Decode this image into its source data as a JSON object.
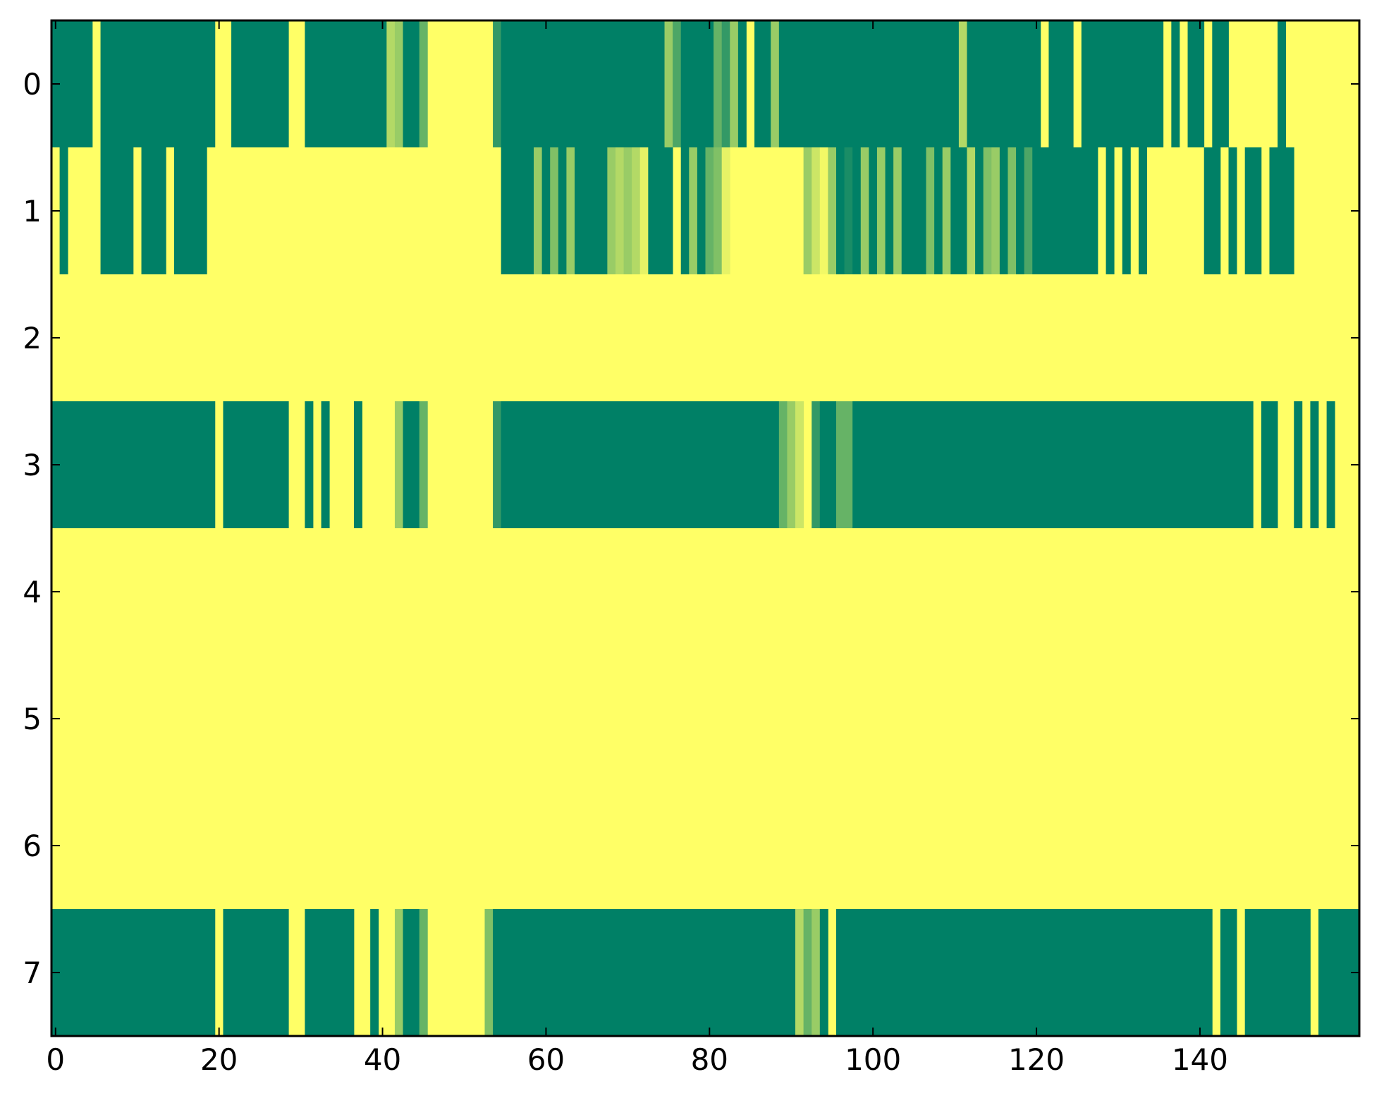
{
  "chart_data": {
    "type": "heatmap",
    "title": "",
    "xlabel": "",
    "ylabel": "",
    "x_range": [
      -0.5,
      159.5
    ],
    "rows": [
      0,
      1,
      2,
      3,
      4,
      5,
      6,
      7
    ],
    "xticks": [
      0,
      20,
      40,
      60,
      80,
      100,
      120,
      140
    ],
    "yticks": [
      0,
      1,
      2,
      3,
      4,
      5,
      6,
      7
    ],
    "colormap": "summer",
    "colormap_low": "#008066",
    "colormap_high": "#ffff66",
    "value_range": [
      0,
      1
    ],
    "cell_default": 1,
    "segments": [
      [
        [
          0,
          4,
          0
        ],
        [
          6,
          19,
          0
        ],
        [
          22,
          28,
          0
        ],
        [
          31,
          40,
          0
        ],
        [
          41,
          41,
          0.7
        ],
        [
          42,
          42,
          0.6
        ],
        [
          43,
          44,
          0
        ],
        [
          45,
          45,
          0.4
        ],
        [
          54,
          54,
          0.2
        ],
        [
          55,
          74,
          0
        ],
        [
          75,
          75,
          0.6
        ],
        [
          76,
          76,
          0.3
        ],
        [
          77,
          80,
          0
        ],
        [
          81,
          81,
          0.4
        ],
        [
          82,
          82,
          0.2
        ],
        [
          83,
          83,
          0.6
        ],
        [
          84,
          84,
          0
        ],
        [
          86,
          87,
          0
        ],
        [
          88,
          88,
          0.6
        ],
        [
          89,
          110,
          0
        ],
        [
          111,
          111,
          0.7
        ],
        [
          112,
          120,
          0
        ],
        [
          122,
          124,
          0
        ],
        [
          126,
          135,
          0
        ],
        [
          137,
          137,
          0
        ],
        [
          139,
          140,
          0
        ],
        [
          142,
          143,
          0
        ],
        [
          150,
          150,
          0
        ]
      ],
      [
        [
          1,
          1,
          0
        ],
        [
          6,
          9,
          0
        ],
        [
          11,
          13,
          0
        ],
        [
          15,
          18,
          0
        ],
        [
          55,
          58,
          0
        ],
        [
          59,
          59,
          0.6
        ],
        [
          60,
          60,
          0
        ],
        [
          61,
          61,
          0.5
        ],
        [
          62,
          62,
          0
        ],
        [
          63,
          63,
          0.6
        ],
        [
          64,
          67,
          0
        ],
        [
          68,
          68,
          0.6
        ],
        [
          69,
          69,
          0.7
        ],
        [
          70,
          70,
          0.6
        ],
        [
          71,
          71,
          0.7
        ],
        [
          72,
          72,
          0.9
        ],
        [
          73,
          75,
          0
        ],
        [
          77,
          77,
          0
        ],
        [
          78,
          78,
          0.6
        ],
        [
          79,
          79,
          0
        ],
        [
          80,
          80,
          0.4
        ],
        [
          81,
          81,
          0.5
        ],
        [
          82,
          82,
          0.9
        ],
        [
          92,
          92,
          0.6
        ],
        [
          93,
          93,
          0.8
        ],
        [
          94,
          94,
          0.95
        ],
        [
          95,
          95,
          0.6
        ],
        [
          96,
          96,
          0
        ],
        [
          97,
          97,
          0.1
        ],
        [
          98,
          98,
          0
        ],
        [
          99,
          99,
          0.6
        ],
        [
          100,
          100,
          0
        ],
        [
          101,
          101,
          0.6
        ],
        [
          102,
          102,
          0
        ],
        [
          103,
          103,
          0.6
        ],
        [
          104,
          106,
          0
        ],
        [
          107,
          107,
          0.5
        ],
        [
          108,
          108,
          0
        ],
        [
          109,
          109,
          0.6
        ],
        [
          110,
          111,
          0
        ],
        [
          112,
          112,
          0.7
        ],
        [
          113,
          113,
          0
        ],
        [
          114,
          114,
          0.5
        ],
        [
          115,
          115,
          0.6
        ],
        [
          116,
          116,
          0
        ],
        [
          117,
          117,
          0.5
        ],
        [
          118,
          118,
          0
        ],
        [
          119,
          119,
          0.3
        ],
        [
          120,
          127,
          0
        ],
        [
          129,
          129,
          0
        ],
        [
          131,
          131,
          0
        ],
        [
          133,
          133,
          0
        ],
        [
          141,
          142,
          0
        ],
        [
          144,
          144,
          0
        ],
        [
          146,
          147,
          0
        ],
        [
          149,
          151,
          0
        ]
      ],
      [],
      [
        [
          0,
          19,
          0
        ],
        [
          21,
          28,
          0
        ],
        [
          31,
          31,
          0
        ],
        [
          33,
          33,
          0
        ],
        [
          37,
          37,
          0
        ],
        [
          42,
          42,
          0.6
        ],
        [
          43,
          44,
          0
        ],
        [
          45,
          45,
          0.4
        ],
        [
          54,
          54,
          0.2
        ],
        [
          55,
          88,
          0
        ],
        [
          89,
          89,
          0.4
        ],
        [
          90,
          90,
          0.6
        ],
        [
          91,
          91,
          0.8
        ],
        [
          93,
          93,
          0.2
        ],
        [
          94,
          95,
          0
        ],
        [
          96,
          97,
          0.4
        ],
        [
          98,
          146,
          0
        ],
        [
          148,
          149,
          0
        ],
        [
          152,
          152,
          0
        ],
        [
          154,
          154,
          0
        ],
        [
          156,
          156,
          0
        ]
      ],
      [],
      [],
      [],
      [
        [
          0,
          19,
          0
        ],
        [
          21,
          28,
          0
        ],
        [
          31,
          36,
          0
        ],
        [
          39,
          39,
          0
        ],
        [
          42,
          42,
          0.6
        ],
        [
          43,
          44,
          0
        ],
        [
          45,
          45,
          0.4
        ],
        [
          53,
          53,
          0.5
        ],
        [
          54,
          90,
          0
        ],
        [
          91,
          91,
          0.7
        ],
        [
          92,
          92,
          0.4
        ],
        [
          93,
          93,
          0.6
        ],
        [
          94,
          94,
          0
        ],
        [
          96,
          141,
          0
        ],
        [
          143,
          144,
          0
        ],
        [
          146,
          153,
          0
        ],
        [
          155,
          159,
          0
        ]
      ]
    ]
  }
}
